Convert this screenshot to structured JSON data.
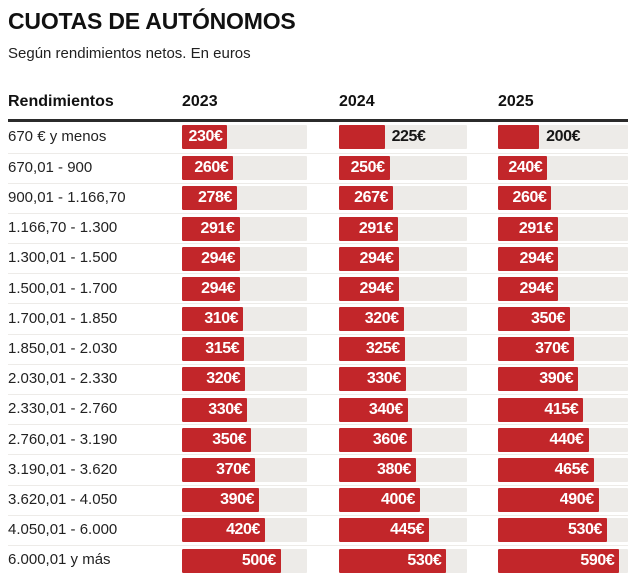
{
  "chart_data": {
    "type": "bar",
    "orientation": "horizontal",
    "title": "CUOTAS DE AUTÓNOMOS",
    "subtitle": "Según rendimientos netos. En euros",
    "row_header": "Rendimientos",
    "value_suffix": "€",
    "axis_max": 632,
    "bar_color": "#c2262a",
    "track_color": "#edebe8",
    "grid": false,
    "legend_position": "column-headers",
    "categories": [
      "670 € y menos",
      "670,01 - 900",
      "900,01 - 1.166,70",
      "1.166,70 - 1.300",
      "1.300,01 - 1.500",
      "1.500,01 - 1.700",
      "1.700,01 - 1.850",
      "1.850,01 - 2.030",
      "2.030,01 - 2.330",
      "2.330,01 - 2.760",
      "2.760,01 - 3.190",
      "3.190,01 - 3.620",
      "3.620,01 - 4.050",
      "4.050,01 - 6.000",
      "6.000,01 y más"
    ],
    "series": [
      {
        "name": "2023",
        "values": [
          230,
          260,
          278,
          291,
          294,
          294,
          310,
          315,
          320,
          330,
          350,
          370,
          390,
          420,
          500
        ],
        "outside_label_rows": []
      },
      {
        "name": "2024",
        "values": [
          225,
          250,
          267,
          291,
          294,
          294,
          320,
          325,
          330,
          340,
          360,
          380,
          400,
          445,
          530
        ],
        "outside_label_rows": [
          0
        ]
      },
      {
        "name": "2025",
        "values": [
          200,
          240,
          260,
          291,
          294,
          294,
          350,
          370,
          390,
          415,
          440,
          465,
          490,
          530,
          590
        ],
        "outside_label_rows": [
          0
        ]
      }
    ]
  }
}
